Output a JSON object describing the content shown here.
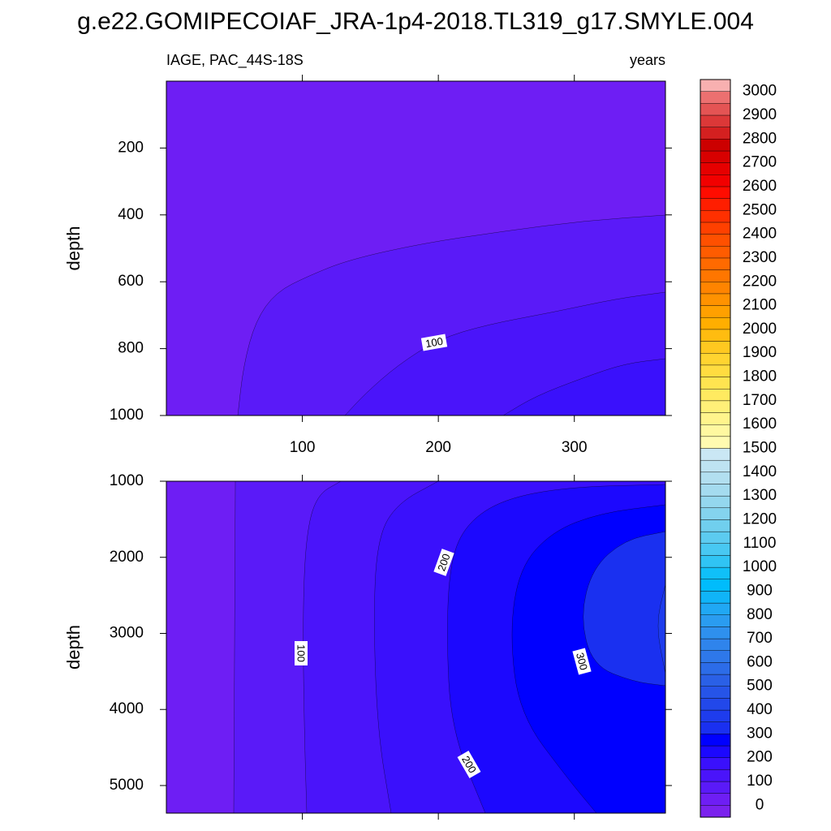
{
  "chart_data": {
    "type": "contour",
    "title": "g.e22.GOMIPECOIAF_JRA-1p4-2018.TL319_g17.SMYLE.004",
    "left_subtitle": "IAGE, PAC_44S-18S",
    "right_subtitle": "years",
    "panels": [
      {
        "ylabel": "depth",
        "xlim": [
          0,
          367
        ],
        "ylim": [
          0,
          1000
        ],
        "reverse_y": true,
        "xticks": [
          100,
          200,
          300
        ],
        "xtick_labels": true,
        "yticks": [
          200,
          400,
          600,
          800,
          1000
        ],
        "levels": [
          50,
          100,
          150
        ],
        "contour_labels": [
          100
        ]
      },
      {
        "ylabel": "depth",
        "xlim": [
          0,
          367
        ],
        "ylim": [
          1000,
          5363
        ],
        "reverse_y": true,
        "xticks": [
          100,
          200,
          300
        ],
        "xtick_labels": false,
        "yticks": [
          1000,
          2000,
          3000,
          4000,
          5000
        ],
        "levels": [
          50,
          100,
          150,
          200,
          250,
          300,
          350
        ],
        "contour_labels": [
          100,
          200,
          200,
          300
        ]
      }
    ],
    "colorbar": {
      "levels": [
        0,
        50,
        100,
        150,
        200,
        250,
        300,
        350,
        400,
        450,
        500,
        550,
        600,
        650,
        700,
        750,
        800,
        850,
        900,
        950,
        1000,
        1050,
        1100,
        1150,
        1200,
        1250,
        1300,
        1350,
        1400,
        1450,
        1500,
        1550,
        1600,
        1650,
        1700,
        1750,
        1800,
        1850,
        1900,
        1950,
        2000,
        2050,
        2100,
        2150,
        2200,
        2250,
        2300,
        2350,
        2400,
        2450,
        2500,
        2550,
        2600,
        2650,
        2700,
        2750,
        2800,
        2850,
        2900,
        2950,
        3000
      ],
      "ticks": [
        0,
        100,
        200,
        300,
        400,
        500,
        600,
        700,
        800,
        900,
        1000,
        1100,
        1200,
        1300,
        1400,
        1500,
        1600,
        1700,
        1800,
        1900,
        2000,
        2100,
        2200,
        2300,
        2400,
        2500,
        2600,
        2700,
        2800,
        2900,
        3000
      ],
      "colors": [
        "#7b22ee",
        "#6e1ef4",
        "#5a1af8",
        "#4a14fa",
        "#3a10fc",
        "#1c08fe",
        "#0000ff",
        "#1a30f0",
        "#1e3ced",
        "#2248ea",
        "#2654e8",
        "#2a60e6",
        "#2c6ce8",
        "#2e78ea",
        "#2f84ec",
        "#2e90ee",
        "#2a9cf0",
        "#20a8f4",
        "#10b4f8",
        "#00bcfc",
        "#10c0f8",
        "#30c4f4",
        "#48c8f2",
        "#5ccbf0",
        "#70cfee",
        "#84d3ee",
        "#94d7ee",
        "#a4dbef",
        "#b2dff0",
        "#bee3f2",
        "#cae7f4",
        "#fffbb0",
        "#fff8a0",
        "#fff48c",
        "#fff078",
        "#ffea60",
        "#ffe450",
        "#ffdc40",
        "#ffd430",
        "#ffc820",
        "#ffbc10",
        "#ffae00",
        "#ffa000",
        "#ff9200",
        "#ff8400",
        "#ff7600",
        "#ff6a00",
        "#ff5c00",
        "#ff5000",
        "#ff4000",
        "#ff3000",
        "#ff1e00",
        "#ff0c00",
        "#f20000",
        "#e60000",
        "#d80000",
        "#cc0000",
        "#d42020",
        "#dc3838",
        "#e45454",
        "#ec7070",
        "#f8b0b0"
      ]
    }
  }
}
